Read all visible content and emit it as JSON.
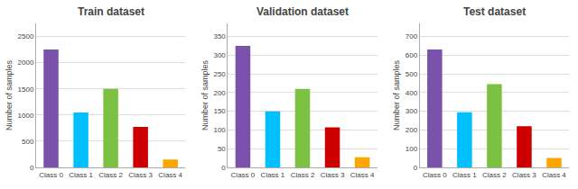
{
  "chart_data": [
    {
      "type": "bar",
      "title": "Train dataset",
      "categories": [
        "Class 0",
        "Class 1",
        "Class 2",
        "Class 3",
        "Class 4"
      ],
      "values": [
        2250,
        1050,
        1500,
        775,
        150
      ],
      "colors": [
        "#7B52AB",
        "#00BFFF",
        "#7DC142",
        "#CC0000",
        "#FFA500"
      ],
      "ylabel": "Number of samples",
      "ylim": [
        0,
        2750
      ],
      "yticks": [
        0,
        500,
        1000,
        1500,
        2000,
        2500
      ],
      "grid": true
    },
    {
      "type": "bar",
      "title": "Validation dataset",
      "categories": [
        "Class 0",
        "Class 1",
        "Class 2",
        "Class 3",
        "Class 4"
      ],
      "values": [
        325,
        150,
        210,
        107,
        27
      ],
      "colors": [
        "#7B52AB",
        "#00BFFF",
        "#7DC142",
        "#CC0000",
        "#FFA500"
      ],
      "ylabel": "Number of samples",
      "ylim": [
        0,
        385
      ],
      "yticks": [
        0,
        50,
        100,
        150,
        200,
        250,
        300,
        350
      ],
      "grid": true
    },
    {
      "type": "bar",
      "title": "Test dataset",
      "categories": [
        "Class 0",
        "Class 1",
        "Class 2",
        "Class 3",
        "Class 4"
      ],
      "values": [
        630,
        295,
        445,
        220,
        50
      ],
      "colors": [
        "#7B52AB",
        "#00BFFF",
        "#7DC142",
        "#CC0000",
        "#FFA500"
      ],
      "ylabel": "Number of samples",
      "ylim": [
        0,
        770
      ],
      "yticks": [
        0,
        100,
        200,
        300,
        400,
        500,
        600,
        700
      ],
      "grid": true
    }
  ]
}
